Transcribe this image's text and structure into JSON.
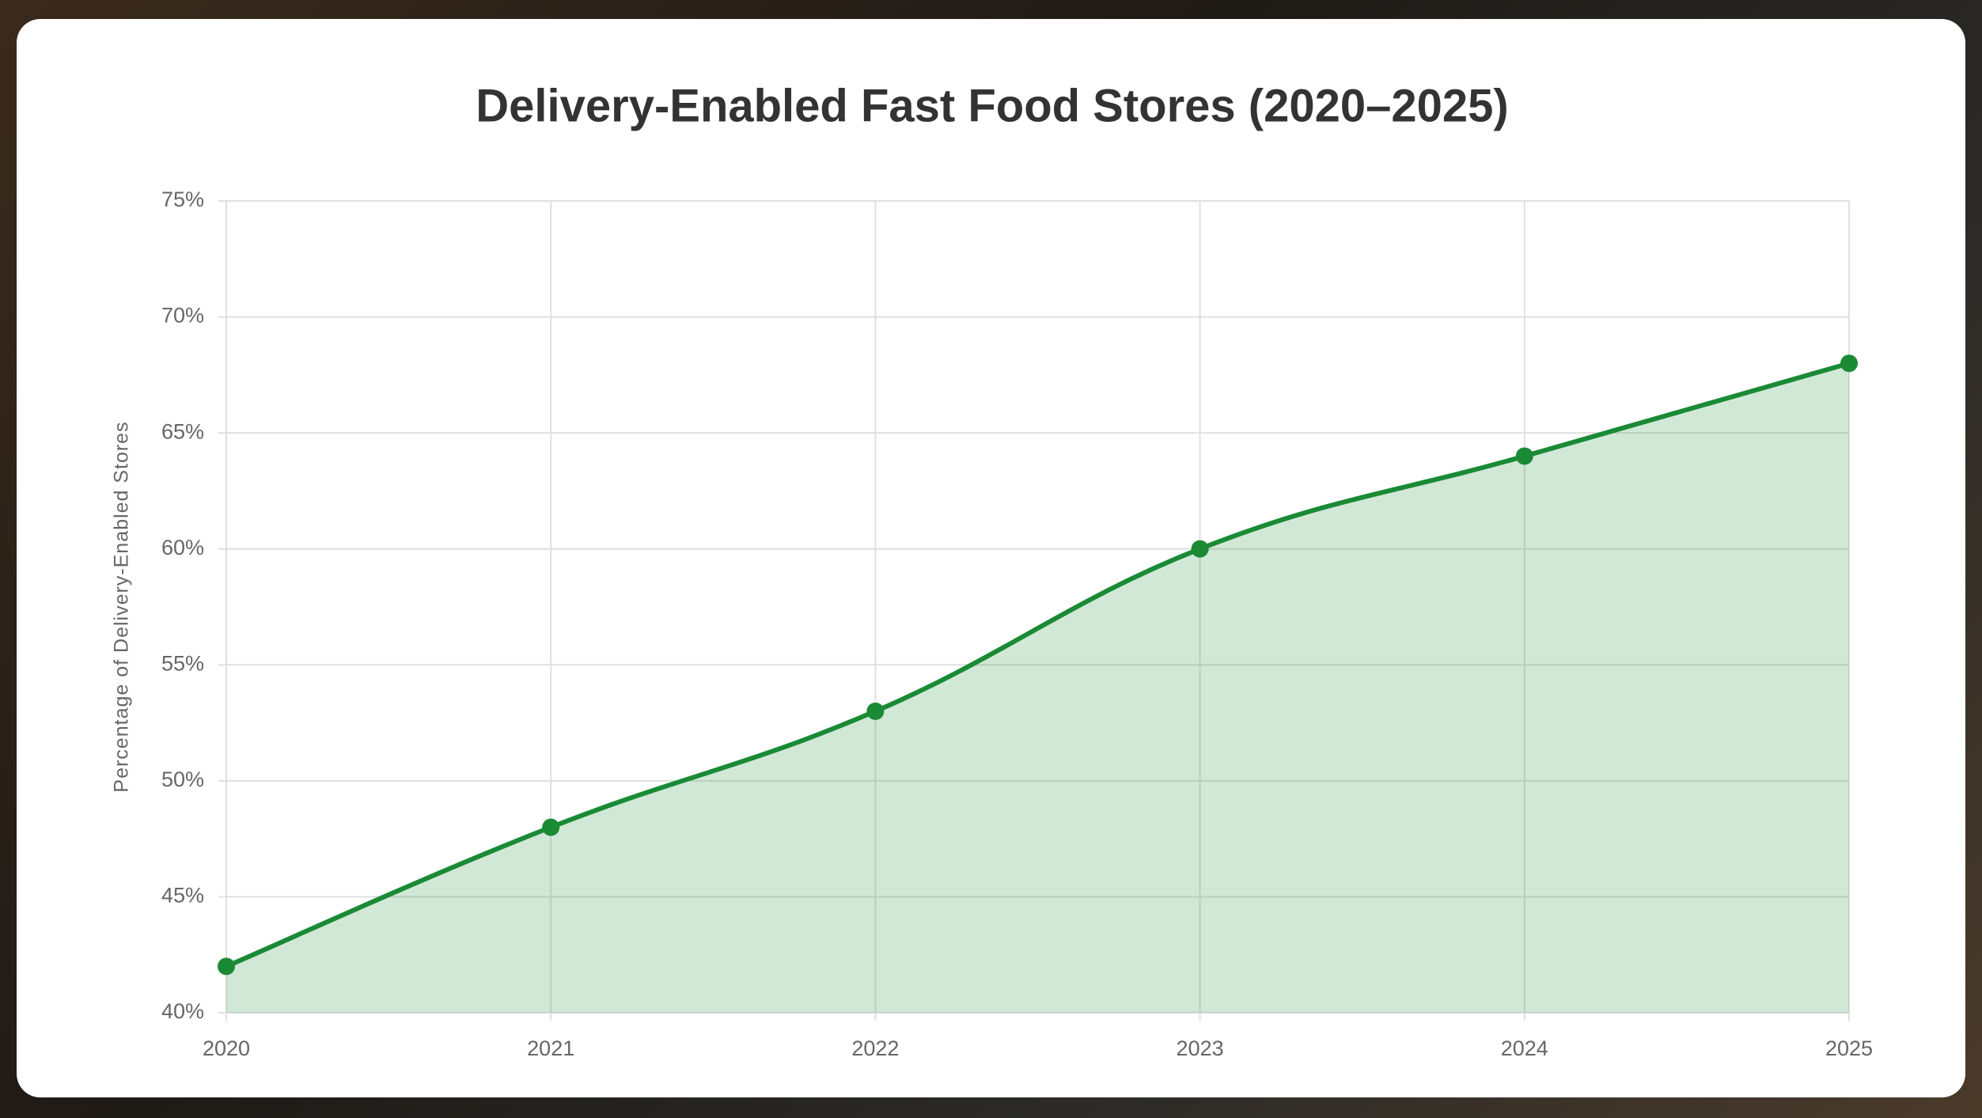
{
  "chart_data": {
    "type": "line",
    "title": "Delivery-Enabled Fast Food Stores (2020–2025)",
    "y_label": "Percentage of Delivery-Enabled Stores",
    "categories": [
      "2020",
      "2021",
      "2022",
      "2023",
      "2024",
      "2025"
    ],
    "values": [
      42,
      48,
      53,
      60,
      64,
      68
    ],
    "color": "#1a8a35",
    "fill": true,
    "grid": true,
    "ylim": [
      40,
      75
    ],
    "yticks": [
      {
        "value": 40,
        "label": "40%"
      },
      {
        "value": 45,
        "label": "45%"
      },
      {
        "value": 50,
        "label": "50%"
      },
      {
        "value": 55,
        "label": "55%"
      },
      {
        "value": 60,
        "label": "60%"
      },
      {
        "value": 65,
        "label": "65%"
      },
      {
        "value": 70,
        "label": "70%"
      },
      {
        "value": 75,
        "label": "75%"
      }
    ]
  }
}
